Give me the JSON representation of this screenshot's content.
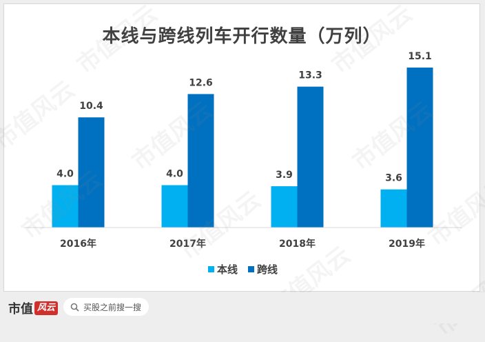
{
  "chart_data": {
    "type": "bar",
    "title": "本线与跨线列车开行数量（万列）",
    "categories": [
      "2016年",
      "2017年",
      "2018年",
      "2019年"
    ],
    "series": [
      {
        "name": "本线",
        "values": [
          4.0,
          4.0,
          3.9,
          3.6
        ],
        "color": "#00b0f0"
      },
      {
        "name": "跨线",
        "values": [
          10.4,
          12.6,
          13.3,
          15.1
        ],
        "color": "#0070c0"
      }
    ],
    "ylim": [
      0,
      16.5
    ],
    "grid": false,
    "legend_position": "bottom"
  },
  "watermark": {
    "text": "市值风云"
  },
  "footer": {
    "brand_text": "市值",
    "brand_logo_text": "风云",
    "search_placeholder": "买股之前搜一搜",
    "search_icon": "search-icon"
  }
}
